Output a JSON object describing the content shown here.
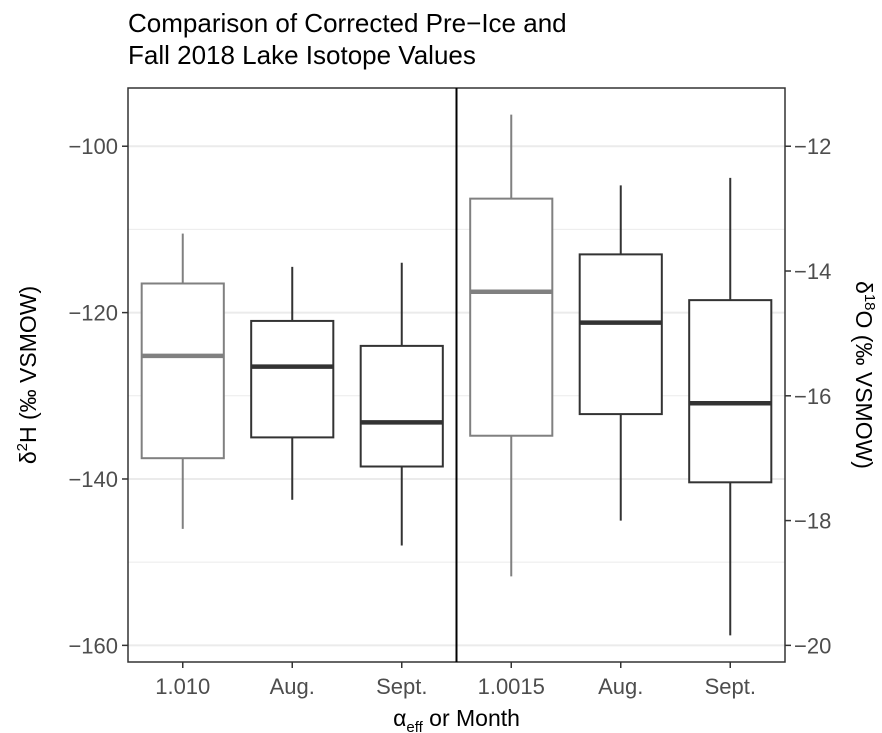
{
  "chart_data": {
    "type": "box",
    "title": [
      "Comparison of Corrected Pre−Ice and",
      "Fall 2018 Lake Isotope Values"
    ],
    "categories": [
      "1.010",
      "Aug.",
      "Sept.",
      "1.0015",
      "Aug.",
      "Sept."
    ],
    "xlabel": {
      "main": "α",
      "sub": "eff",
      "rest": " or Month"
    },
    "y_left": {
      "label": {
        "base": "δ",
        "sup": "2",
        "rest": "H (‰ VSMOW)"
      },
      "lim": [
        -162,
        -93
      ],
      "ticks": [
        -100,
        -120,
        -140,
        -160
      ],
      "tick_labels": [
        "−100",
        "−120",
        "−140",
        "−160"
      ]
    },
    "y_right": {
      "label": {
        "base": "δ",
        "sup": "18",
        "rest": "O (‰ VSMOW)"
      },
      "ticks": [
        -12,
        -14,
        -16,
        -18,
        -20
      ],
      "tick_labels": [
        "−12",
        "−14",
        "−16",
        "−18",
        "−20"
      ],
      "transform": "d18O = (d2H + 10) / 7.5"
    },
    "boxes": [
      {
        "category": "1.010",
        "whisker_low": -146.0,
        "q1": -137.5,
        "median": -125.2,
        "q3": -116.5,
        "whisker_high": -110.5,
        "color": "#808080"
      },
      {
        "category": "Aug.",
        "whisker_low": -142.5,
        "q1": -135.0,
        "median": -126.5,
        "q3": -121.0,
        "whisker_high": -114.5,
        "color": "#333333"
      },
      {
        "category": "Sept.",
        "whisker_low": -148.0,
        "q1": -138.5,
        "median": -133.2,
        "q3": -124.0,
        "whisker_high": -114.0,
        "color": "#333333"
      },
      {
        "category": "1.0015",
        "whisker_low": -151.7,
        "q1": -134.8,
        "median": -117.5,
        "q3": -106.3,
        "whisker_high": -96.2,
        "color": "#808080"
      },
      {
        "category": "Aug.",
        "whisker_low": -145.0,
        "q1": -132.2,
        "median": -121.2,
        "q3": -113.0,
        "whisker_high": -104.7,
        "color": "#333333"
      },
      {
        "category": "Sept.",
        "whisker_low": -158.8,
        "q1": -140.4,
        "median": -130.9,
        "q3": -118.5,
        "whisker_high": -103.8,
        "color": "#333333"
      }
    ],
    "separator_after_index": 2,
    "grid": true
  }
}
